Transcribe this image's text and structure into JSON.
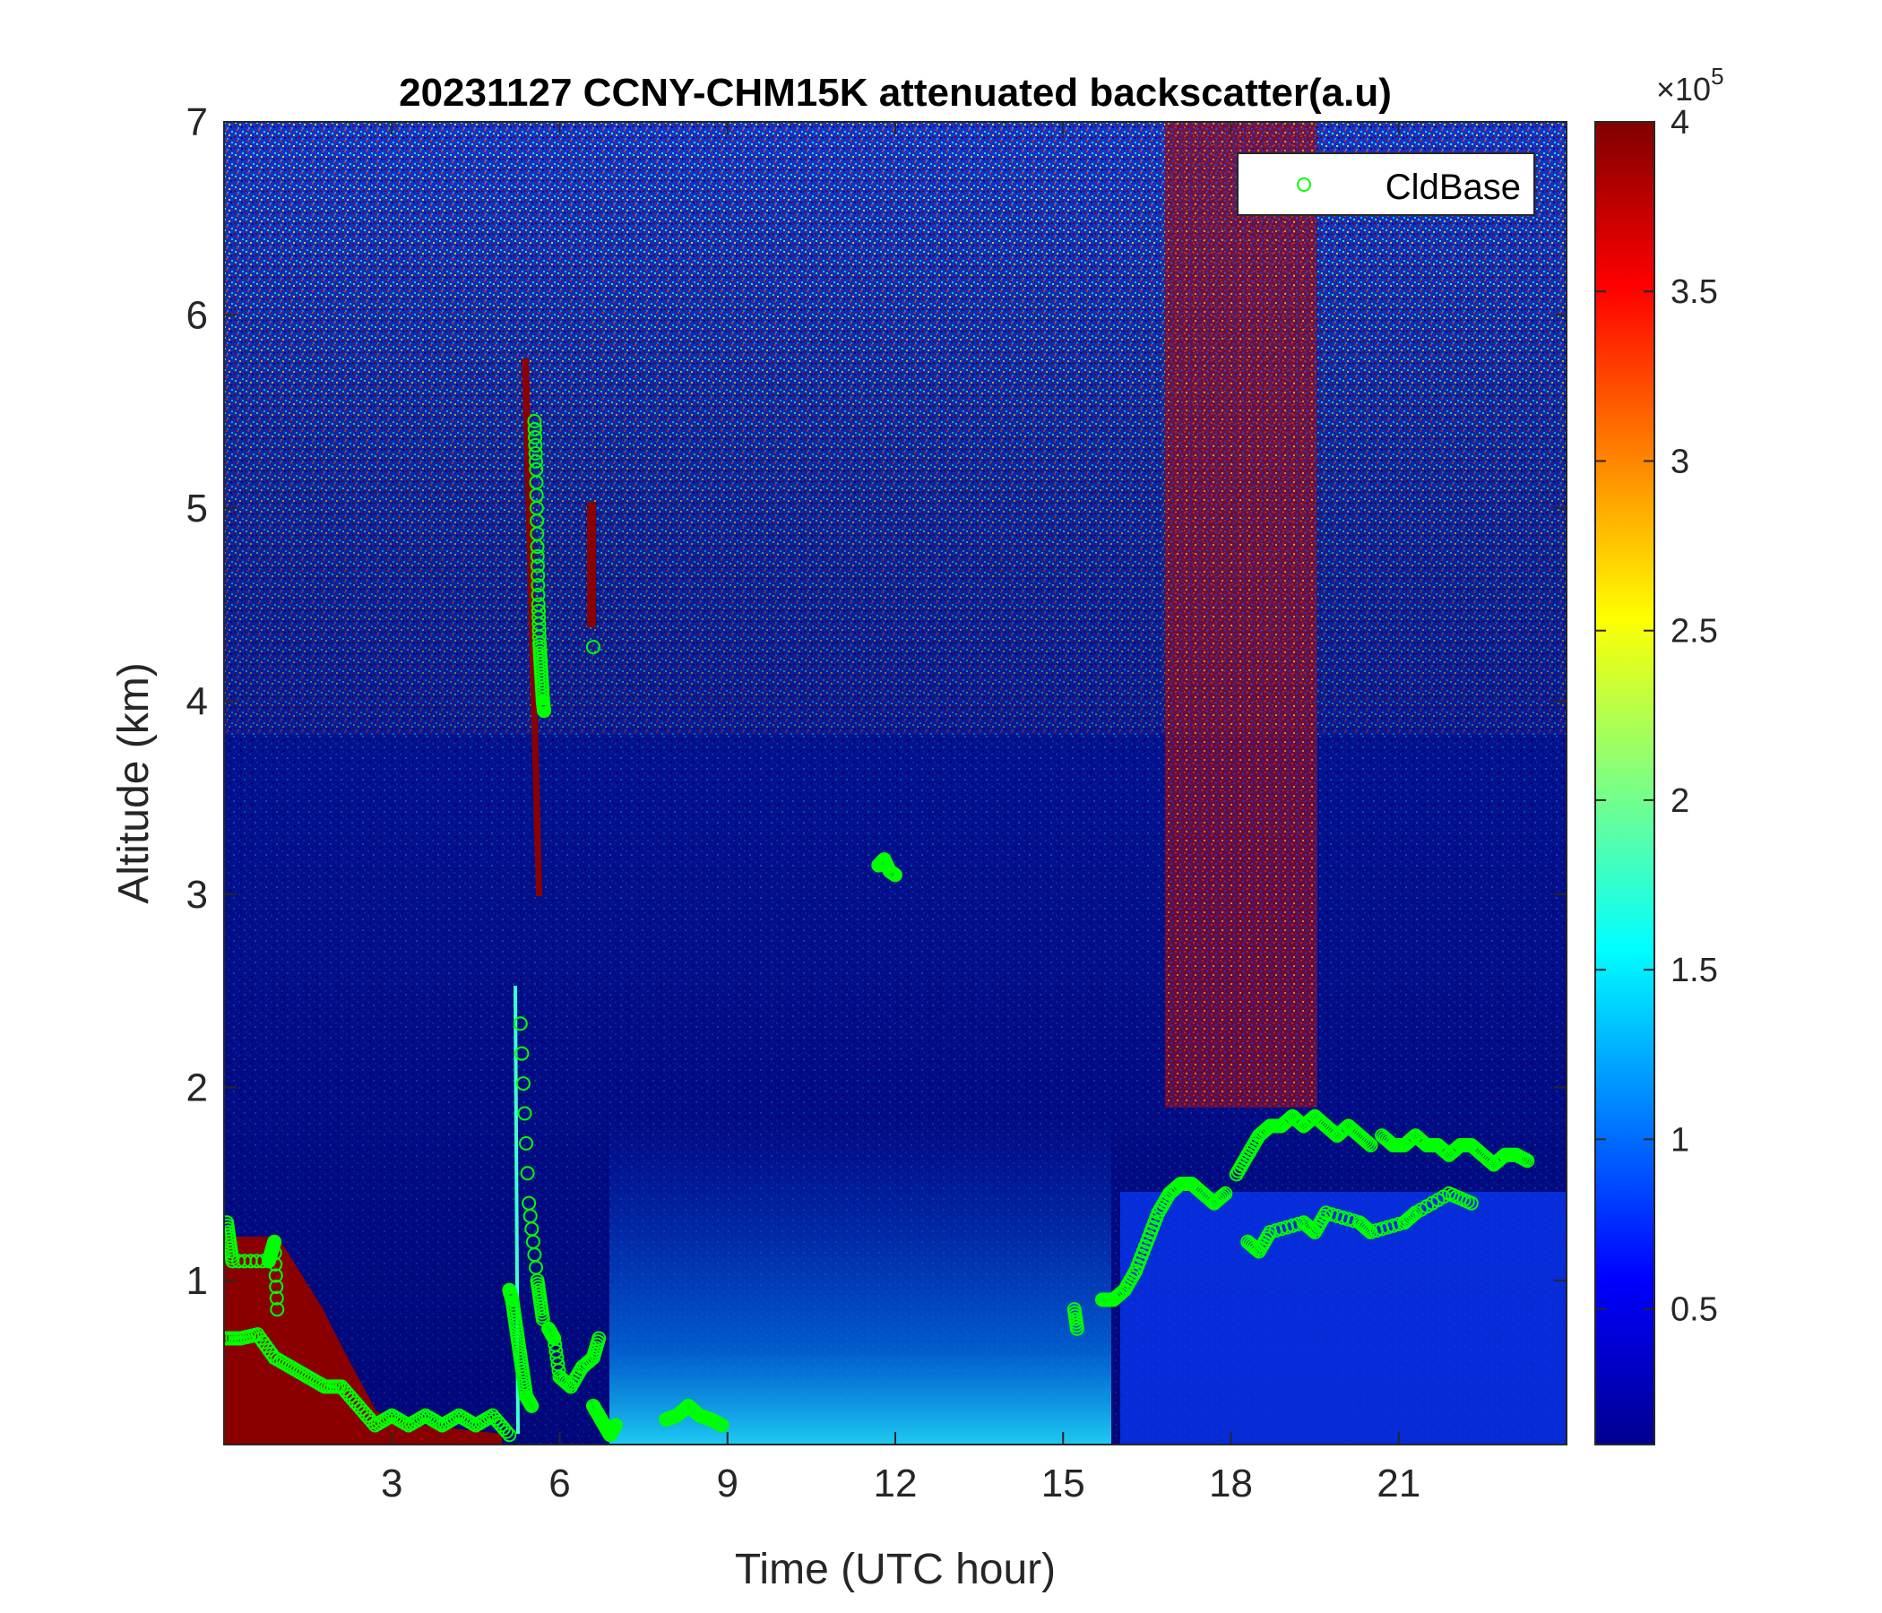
{
  "chart_data": {
    "type": "heatmap",
    "title": "20231127 CCNY-CHM15K attenuated backscatter(a.u)",
    "xlabel": "Time (UTC hour)",
    "ylabel": "Altitude (km)",
    "xlim": [
      0,
      24
    ],
    "ylim": [
      0.15,
      7
    ],
    "x_ticks": [
      3,
      6,
      9,
      12,
      15,
      18,
      21
    ],
    "x_tick_labels": [
      "3",
      "6",
      "9",
      "12",
      "15",
      "18",
      "21"
    ],
    "y_ticks": [
      1,
      2,
      3,
      4,
      5,
      6,
      7
    ],
    "y_tick_labels": [
      "1",
      "2",
      "3",
      "4",
      "5",
      "6",
      "7"
    ],
    "colorbar": {
      "colormap": "jet",
      "range": [
        10000,
        400000
      ],
      "exponent_label": "×10",
      "exponent_power": "5",
      "ticks": [
        0.5,
        1,
        1.5,
        2,
        2.5,
        3,
        3.5,
        4
      ],
      "tick_labels": [
        "0.5",
        "1",
        "1.5",
        "2",
        "2.5",
        "3",
        "3.5",
        "4"
      ]
    },
    "legend": {
      "placement": "top-right",
      "entries": [
        "CldBase"
      ]
    },
    "marker_color": "#00ff00",
    "cloud_base_segments": [
      {
        "t": [
          0.0,
          0.3,
          0.6,
          0.9,
          1.2,
          1.5,
          1.8,
          2.1,
          2.4,
          2.7,
          3.0,
          3.3,
          3.6,
          3.9,
          4.2,
          4.5,
          4.8,
          5.1
        ],
        "z": [
          0.7,
          0.7,
          0.72,
          0.6,
          0.55,
          0.5,
          0.45,
          0.45,
          0.35,
          0.25,
          0.3,
          0.25,
          0.3,
          0.25,
          0.3,
          0.25,
          0.3,
          0.2
        ]
      },
      {
        "t": [
          0.05,
          0.1,
          0.15,
          0.8,
          0.85,
          0.9,
          0.95
        ],
        "z": [
          1.3,
          1.2,
          1.1,
          1.1,
          1.15,
          1.2,
          0.85
        ]
      },
      {
        "t": [
          5.1,
          5.15,
          5.2,
          5.25,
          5.3,
          5.35,
          5.4,
          5.5
        ],
        "z": [
          0.95,
          0.9,
          0.8,
          0.7,
          0.6,
          0.5,
          0.4,
          0.35
        ]
      },
      {
        "t": [
          5.3,
          5.45,
          5.6,
          5.65,
          5.7
        ],
        "z": [
          2.33,
          1.4,
          1.0,
          0.9,
          0.8
        ]
      },
      {
        "t": [
          5.55,
          5.58,
          5.6,
          5.62,
          5.64,
          5.66,
          5.68,
          5.7,
          5.72
        ],
        "z": [
          5.45,
          5.2,
          4.8,
          4.5,
          4.3,
          4.2,
          4.1,
          4.0,
          3.95
        ]
      },
      {
        "t": [
          5.8,
          5.9,
          6.0,
          6.2,
          6.4,
          6.6,
          6.7
        ],
        "z": [
          0.75,
          0.7,
          0.5,
          0.45,
          0.55,
          0.6,
          0.7
        ]
      },
      {
        "t": [
          6.6,
          6.7,
          6.8,
          6.9,
          7.0
        ],
        "z": [
          0.35,
          0.3,
          0.25,
          0.2,
          0.25
        ]
      },
      {
        "t": [
          6.6
        ],
        "z": [
          4.28
        ]
      },
      {
        "t": [
          7.9,
          8.1,
          8.3,
          8.5,
          8.7,
          8.9
        ],
        "z": [
          0.28,
          0.3,
          0.35,
          0.3,
          0.28,
          0.25
        ]
      },
      {
        "t": [
          11.7,
          11.8,
          11.9,
          12.0
        ],
        "z": [
          3.15,
          3.18,
          3.12,
          3.1
        ]
      },
      {
        "t": [
          15.2,
          15.25
        ],
        "z": [
          0.85,
          0.75
        ]
      },
      {
        "t": [
          15.7,
          15.9,
          16.1,
          16.3,
          16.5,
          16.7,
          16.9,
          17.1,
          17.3,
          17.5,
          17.7,
          17.9
        ],
        "z": [
          0.9,
          0.9,
          0.95,
          1.05,
          1.2,
          1.35,
          1.45,
          1.5,
          1.5,
          1.45,
          1.4,
          1.45
        ]
      },
      {
        "t": [
          18.1,
          18.3,
          18.5,
          18.7,
          18.9,
          19.1,
          19.3,
          19.5,
          19.7,
          19.9,
          20.1,
          20.3,
          20.5
        ],
        "z": [
          1.55,
          1.65,
          1.75,
          1.8,
          1.8,
          1.85,
          1.8,
          1.85,
          1.8,
          1.75,
          1.8,
          1.75,
          1.7
        ]
      },
      {
        "t": [
          20.7,
          20.9,
          21.1,
          21.3,
          21.5,
          21.7,
          21.9,
          22.1,
          22.3,
          22.5,
          22.7,
          22.9,
          23.1,
          23.3
        ],
        "z": [
          1.75,
          1.7,
          1.7,
          1.75,
          1.7,
          1.7,
          1.65,
          1.7,
          1.7,
          1.65,
          1.6,
          1.65,
          1.65,
          1.62
        ]
      },
      {
        "t": [
          18.3,
          18.5,
          18.7,
          19.3,
          19.5,
          19.7,
          20.3,
          20.5,
          21.1,
          21.3,
          21.9,
          22.3
        ],
        "z": [
          1.2,
          1.15,
          1.25,
          1.3,
          1.25,
          1.35,
          1.3,
          1.25,
          1.3,
          1.35,
          1.45,
          1.4
        ]
      }
    ]
  }
}
